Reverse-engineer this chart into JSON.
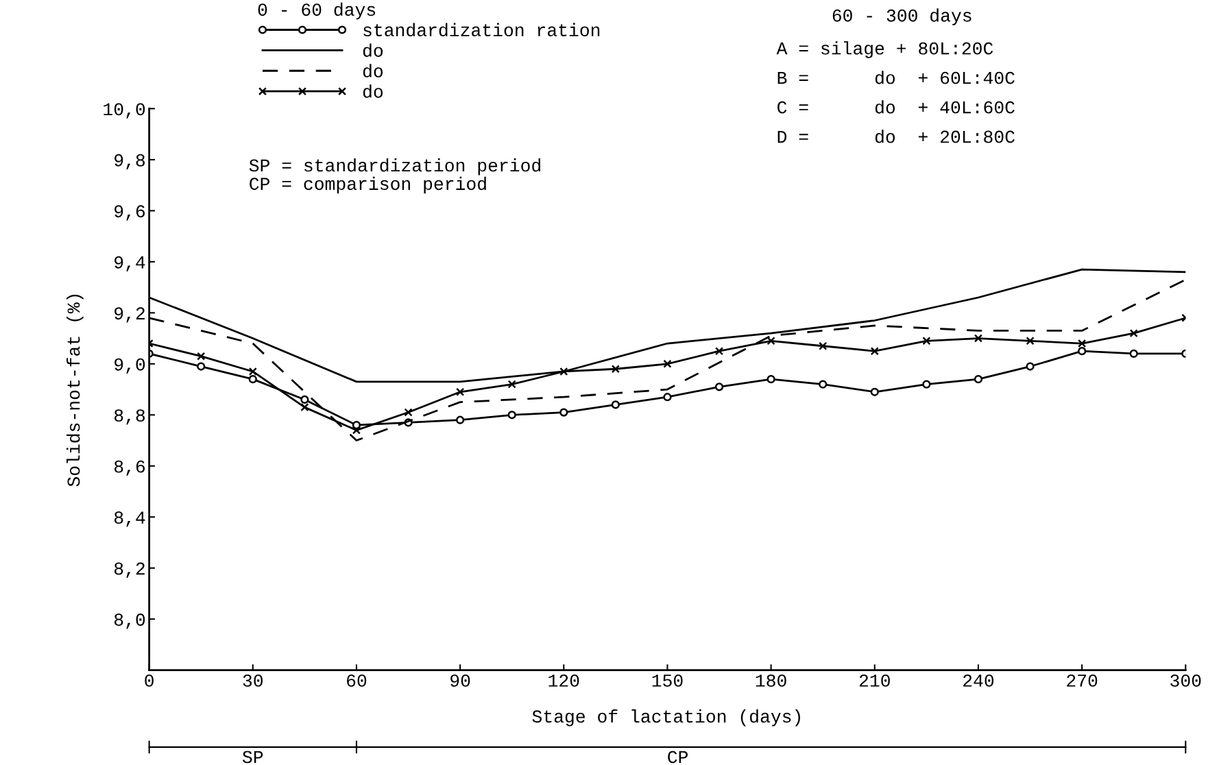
{
  "chart_data": {
    "type": "line",
    "xlabel": "Stage of lactation (days)",
    "ylabel": "Solids-not-fat (%)",
    "legend_title": "0 - 60 days",
    "xlim": [
      0,
      300
    ],
    "xticks": [
      0,
      30,
      60,
      90,
      120,
      150,
      180,
      210,
      240,
      270,
      300
    ],
    "ylim": [
      7.8,
      10.0
    ],
    "yticks": [
      {
        "value": 8.0,
        "label": "8,0"
      },
      {
        "value": 8.2,
        "label": "8,2"
      },
      {
        "value": 8.4,
        "label": "8,4"
      },
      {
        "value": 8.6,
        "label": "8,6"
      },
      {
        "value": 8.8,
        "label": "8,8"
      },
      {
        "value": 9.0,
        "label": "9,0"
      },
      {
        "value": 9.2,
        "label": "9,2"
      },
      {
        "value": 9.4,
        "label": "9,4"
      },
      {
        "value": 9.6,
        "label": "9,6"
      },
      {
        "value": 9.8,
        "label": "9,8"
      },
      {
        "value": 10.0,
        "label": "10,0"
      }
    ],
    "grid": false,
    "legend": "top",
    "series": [
      {
        "name": "standardization ration",
        "color": "#000000",
        "marker": "circle",
        "line_style": "solid",
        "x": [
          0,
          15,
          30,
          45,
          60,
          75,
          90,
          105,
          120,
          135,
          150,
          165,
          180,
          195,
          210,
          225,
          240,
          255,
          270,
          285,
          300
        ],
        "values": [
          9.04,
          8.99,
          8.94,
          8.86,
          8.76,
          8.77,
          8.78,
          8.8,
          8.81,
          8.84,
          8.87,
          8.91,
          8.94,
          8.92,
          8.89,
          8.92,
          8.94,
          8.99,
          9.05,
          9.04,
          9.04
        ]
      },
      {
        "name": "do",
        "color": "#000000",
        "marker": "none",
        "line_style": "solid",
        "x": [
          0,
          30,
          60,
          90,
          120,
          150,
          180,
          210,
          240,
          270,
          300
        ],
        "values": [
          9.26,
          9.1,
          8.93,
          8.93,
          8.97,
          9.08,
          9.12,
          9.17,
          9.26,
          9.37,
          9.36
        ]
      },
      {
        "name": "do",
        "color": "#000000",
        "marker": "none",
        "line_style": "dashed",
        "x": [
          0,
          30,
          60,
          90,
          120,
          150,
          180,
          210,
          240,
          270,
          300
        ],
        "values": [
          9.18,
          9.08,
          8.7,
          8.85,
          8.87,
          8.9,
          9.11,
          9.15,
          9.13,
          9.13,
          9.33
        ]
      },
      {
        "name": "do",
        "color": "#000000",
        "marker": "cross",
        "line_style": "solid",
        "x": [
          0,
          15,
          30,
          45,
          60,
          75,
          90,
          105,
          120,
          135,
          150,
          165,
          180,
          195,
          210,
          225,
          240,
          255,
          270,
          285,
          300
        ],
        "values": [
          9.08,
          9.03,
          8.97,
          8.83,
          8.74,
          8.81,
          8.89,
          8.92,
          8.97,
          8.98,
          9.0,
          9.05,
          9.09,
          9.07,
          9.05,
          9.09,
          9.1,
          9.09,
          9.08,
          9.12,
          9.18
        ]
      }
    ],
    "annotations": [
      "SP",
      "CP",
      "SP = standardization period",
      "CP = comparison period",
      "60 - 300 days",
      "A = silage + 80L:20C",
      "B =      do  + 60L:40C",
      "C =      do  + 40L:60C",
      "D =      do  + 20L:80C"
    ]
  }
}
